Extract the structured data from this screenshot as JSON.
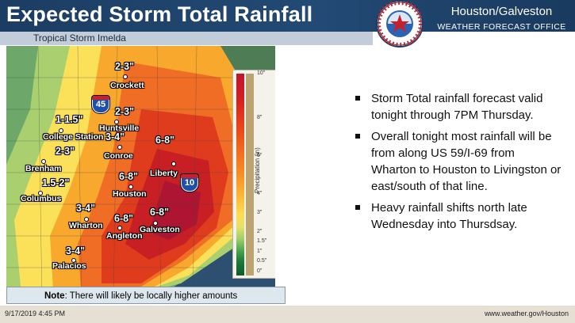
{
  "header": {
    "title": "Expected Storm Total Rainfall",
    "office_line1": "Houston/Galveston",
    "office_line2": "WEATHER FORECAST OFFICE",
    "logo_text": "NATIONAL WEATHER SERVICE"
  },
  "subtitle": "Tropical Storm Imelda",
  "map": {
    "rainfall_labels": [
      "2-3\"",
      "2-3\"",
      "1-1.5\"",
      "3-4\"",
      "2-3\"",
      "1.5-2\"",
      "6-8\"",
      "6-8\"",
      "3-4\"",
      "6-8\"",
      "6-8\"",
      "3-4\""
    ],
    "cities": [
      "Crockett",
      "Huntsville",
      "College Station",
      "Conroe",
      "Brenham",
      "Liberty",
      "Houston",
      "Columbus",
      "Wharton",
      "Galveston",
      "Angleton",
      "Palacios"
    ],
    "shields": [
      "45",
      "10"
    ],
    "legend_title": "Precipitation (in)",
    "legend_ticks": [
      "10\"",
      "8\"",
      "6\"",
      "4\"",
      "3\"",
      "2\"",
      "1.5\"",
      "1\"",
      "0.5\"",
      "0\""
    ]
  },
  "note": {
    "bold": "Note",
    "text": ": There will likely be locally higher amounts"
  },
  "bullets": [
    "Storm Total rainfall forecast valid tonight through 7PM Thursday.",
    "Overall tonight most rainfall will be from along US 59/I-69 from Wharton to Houston to Livingston or east/south of that line.",
    "Heavy rainfall shifts north late Wednesday into Thursdsay."
  ],
  "footer": {
    "date": "9/17/2019 4:45 PM",
    "url": "www.weather.gov/Houston"
  },
  "colors": {
    "header_bg": "#1c3d63",
    "subbar_bg": "#c3cdd9",
    "note_bg": "#dde7ee",
    "footer_bg": "#e6e0d4"
  }
}
